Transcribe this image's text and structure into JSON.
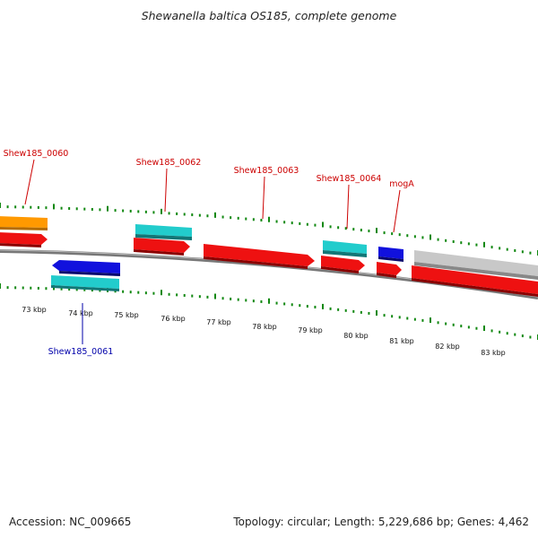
{
  "title": "Shewanella baltica OS185, complete genome",
  "footer": {
    "accession": "Accession: NC_009665",
    "summary": "Topology: circular; Length: 5,229,686 bp; Genes: 4,462"
  },
  "colors": {
    "forward_cds": "#ee1111",
    "reverse_cds": "#1111dd",
    "forward_rna": "#22cccc",
    "reverse_rna": "#22cccc",
    "other": "#ff9900",
    "unknown": "#bbbbbb",
    "backbone": "#888888",
    "tick": "#118811",
    "label_forward": "#cc0000",
    "label_reverse": "#0000aa"
  },
  "ticks": [
    "73 kbp",
    "74 kbp",
    "75 kbp",
    "76 kbp",
    "77 kbp",
    "78 kbp",
    "79 kbp",
    "80 kbp",
    "81 kbp",
    "82 kbp",
    "83 kbp"
  ],
  "gene_labels": [
    {
      "text": "Shew185_0060",
      "strand": "forward"
    },
    {
      "text": "Shew185_0061",
      "strand": "reverse"
    },
    {
      "text": "Shew185_0062",
      "strand": "forward"
    },
    {
      "text": "Shew185_0063",
      "strand": "forward"
    },
    {
      "text": "Shew185_0064",
      "strand": "forward"
    },
    {
      "text": "mogA",
      "strand": "forward"
    }
  ]
}
